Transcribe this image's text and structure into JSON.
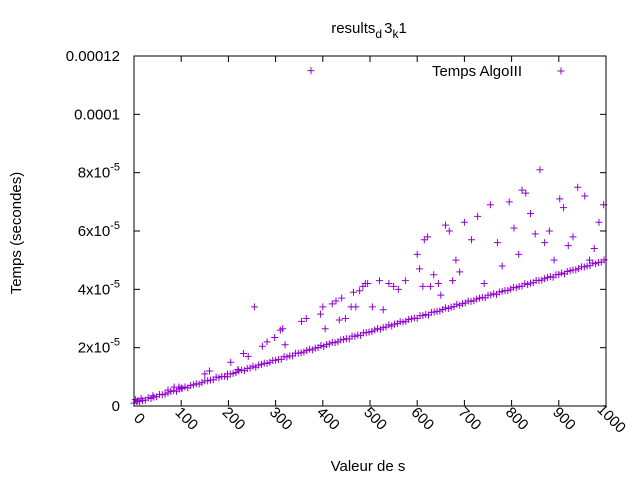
{
  "chart_data": {
    "type": "scatter",
    "title": {
      "base": "results",
      "sub1": "d",
      "mid": "3",
      "sub2": "k",
      "end": "1"
    },
    "xlabel": "Valeur de s",
    "ylabel": "Temps (secondes)",
    "xlim": [
      0,
      1000
    ],
    "ylim": [
      0,
      0.00012
    ],
    "legend_position": "top-right",
    "marker": "plus",
    "xticks": [
      {
        "value": 0,
        "label": "0"
      },
      {
        "value": 100,
        "label": "100"
      },
      {
        "value": 200,
        "label": "200"
      },
      {
        "value": 300,
        "label": "300"
      },
      {
        "value": 400,
        "label": "400"
      },
      {
        "value": 500,
        "label": "500"
      },
      {
        "value": 600,
        "label": "600"
      },
      {
        "value": 700,
        "label": "700"
      },
      {
        "value": 800,
        "label": "800"
      },
      {
        "value": 900,
        "label": "900"
      },
      {
        "value": 1000,
        "label": "1000"
      }
    ],
    "yticks": [
      {
        "value": 0,
        "label": "0",
        "mantissa": "",
        "exp": ""
      },
      {
        "value": 2e-05,
        "label": "",
        "mantissa": "2x10",
        "exp": "-5"
      },
      {
        "value": 4e-05,
        "label": "",
        "mantissa": "4x10",
        "exp": "-5"
      },
      {
        "value": 6e-05,
        "label": "",
        "mantissa": "6x10",
        "exp": "-5"
      },
      {
        "value": 8e-05,
        "label": "",
        "mantissa": "8x10",
        "exp": "-5"
      },
      {
        "value": 0.0001,
        "label": "0.0001",
        "mantissa": "",
        "exp": ""
      },
      {
        "value": 0.00012,
        "label": "0.00012",
        "mantissa": "",
        "exp": ""
      }
    ],
    "series": [
      {
        "name": "Temps AlgoIII",
        "color": "#9400d3",
        "trend": {
          "x_start": 0,
          "y_start": 1e-06,
          "x_end": 1000,
          "y_end": 5e-05,
          "step": 6,
          "wobble": 4e-07
        },
        "points": [
          [
            3,
            2.2e-06
          ],
          [
            8,
            1.8e-06
          ],
          [
            15,
            2.6e-06
          ],
          [
            40,
            3.5e-06
          ],
          [
            72,
            5.5e-06
          ],
          [
            85,
            6.5e-06
          ],
          [
            95,
            6.5e-06
          ],
          [
            100,
            6.2e-06
          ],
          [
            150,
            1.1e-05
          ],
          [
            160,
            1.2e-05
          ],
          [
            198,
            1e-05
          ],
          [
            205,
            1.5e-05
          ],
          [
            220,
            1.25e-05
          ],
          [
            232,
            1.8e-05
          ],
          [
            242,
            1.7e-05
          ],
          [
            255,
            3.4e-05
          ],
          [
            272,
            2.05e-05
          ],
          [
            282,
            2.2e-05
          ],
          [
            298,
            2.35e-05
          ],
          [
            310,
            2.6e-05
          ],
          [
            315,
            2.65e-05
          ],
          [
            320,
            2.1e-05
          ],
          [
            355,
            2.9e-05
          ],
          [
            365,
            3e-05
          ],
          [
            375,
            0.000115
          ],
          [
            395,
            3.15e-05
          ],
          [
            400,
            3.4e-05
          ],
          [
            405,
            2.65e-05
          ],
          [
            420,
            3.5e-05
          ],
          [
            428,
            3.6e-05
          ],
          [
            435,
            2.95e-05
          ],
          [
            440,
            3.7e-05
          ],
          [
            448,
            3e-05
          ],
          [
            460,
            3.4e-05
          ],
          [
            465,
            3.9e-05
          ],
          [
            470,
            3.4e-05
          ],
          [
            478,
            3.95e-05
          ],
          [
            485,
            4.1e-05
          ],
          [
            490,
            4.2e-05
          ],
          [
            495,
            4.2e-05
          ],
          [
            505,
            3.4e-05
          ],
          [
            520,
            4.3e-05
          ],
          [
            528,
            3.3e-05
          ],
          [
            540,
            4.2e-05
          ],
          [
            550,
            4.1e-05
          ],
          [
            560,
            4e-05
          ],
          [
            575,
            4.3e-05
          ],
          [
            600,
            5.2e-05
          ],
          [
            605,
            4.7e-05
          ],
          [
            612,
            4.1e-05
          ],
          [
            615,
            5.7e-05
          ],
          [
            622,
            5.8e-05
          ],
          [
            628,
            4.1e-05
          ],
          [
            635,
            4.5e-05
          ],
          [
            645,
            4.2e-05
          ],
          [
            650,
            3.8e-05
          ],
          [
            660,
            6.2e-05
          ],
          [
            668,
            6e-05
          ],
          [
            675,
            4.3e-05
          ],
          [
            682,
            5e-05
          ],
          [
            690,
            4.6e-05
          ],
          [
            700,
            6.3e-05
          ],
          [
            715,
            5.7e-05
          ],
          [
            728,
            6.5e-05
          ],
          [
            742,
            4.2e-05
          ],
          [
            755,
            6.9e-05
          ],
          [
            770,
            5.6e-05
          ],
          [
            780,
            4.8e-05
          ],
          [
            795,
            7e-05
          ],
          [
            805,
            6.1e-05
          ],
          [
            815,
            5.2e-05
          ],
          [
            822,
            7.4e-05
          ],
          [
            830,
            7.3e-05
          ],
          [
            840,
            6.6e-05
          ],
          [
            850,
            5.9e-05
          ],
          [
            860,
            8.1e-05
          ],
          [
            870,
            5.6e-05
          ],
          [
            880,
            6e-05
          ],
          [
            890,
            5e-05
          ],
          [
            902,
            7.1e-05
          ],
          [
            910,
            6.8e-05
          ],
          [
            920,
            5.5e-05
          ],
          [
            930,
            5.8e-05
          ],
          [
            940,
            7.5e-05
          ],
          [
            955,
            7.2e-05
          ],
          [
            965,
            5e-05
          ],
          [
            975,
            5.4e-05
          ],
          [
            985,
            6.3e-05
          ],
          [
            995,
            6.9e-05
          ]
        ]
      }
    ]
  }
}
